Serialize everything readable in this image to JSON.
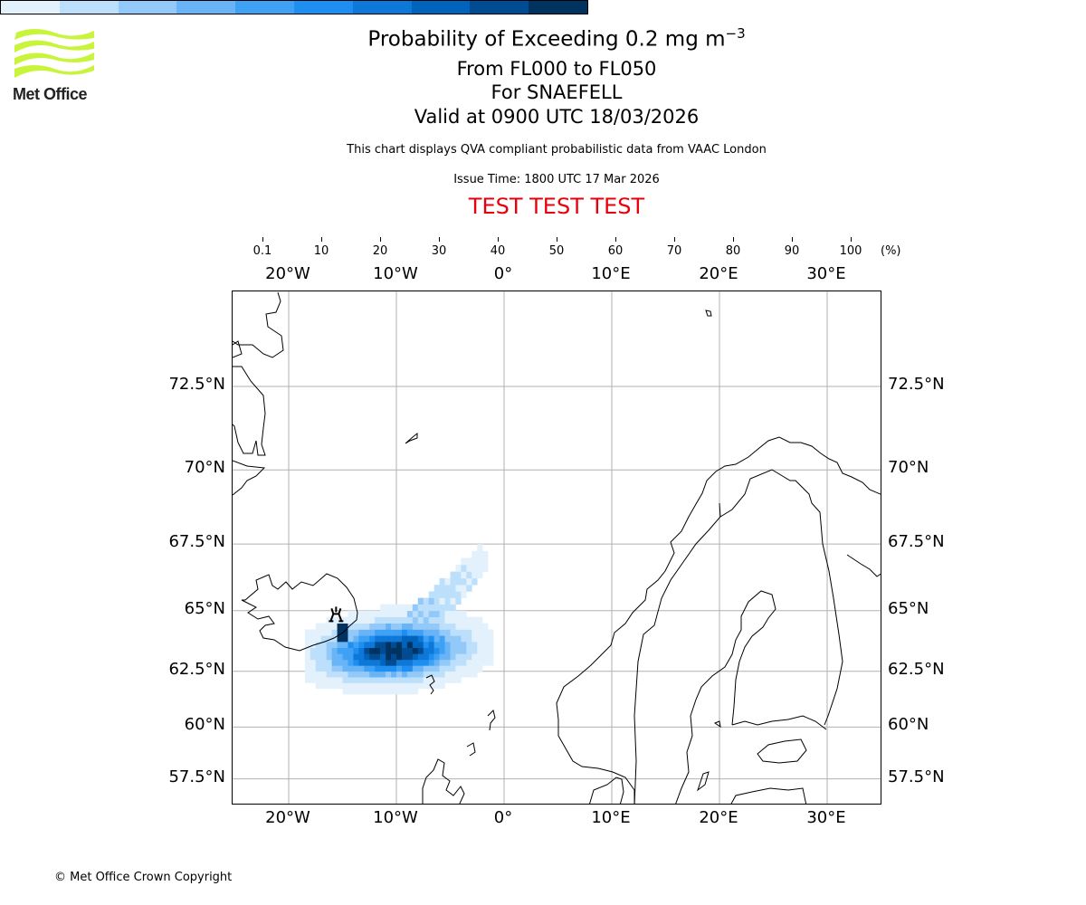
{
  "logo": {
    "text": "Met Office",
    "color": "#c8f53a"
  },
  "header": {
    "title": "Probability of Exceeding 0.2 mg m",
    "title_sup": "−3",
    "levels": "From FL000 to FL050",
    "volcano": "For SNAEFELL",
    "valid": "Valid at 0900 UTC 18/03/2026",
    "description": "This chart displays QVA compliant probabilistic data from VAAC London",
    "issue_time": "Issue Time: 1800 UTC 17 Mar 2026",
    "test_banner": "TEST TEST TEST"
  },
  "colorbar": {
    "labels": [
      "0.1",
      "10",
      "20",
      "30",
      "40",
      "50",
      "60",
      "70",
      "80",
      "90",
      "100"
    ],
    "unit": "(%)",
    "colors": [
      "#e3f1fd",
      "#bcdffb",
      "#93c9f9",
      "#68b4f6",
      "#3fa1f4",
      "#1e8ef0",
      "#0e78d9",
      "#0063bc",
      "#004b91",
      "#00335f"
    ]
  },
  "map": {
    "extent": {
      "lon": [
        -25.2,
        35.2
      ],
      "lat": [
        56.15,
        75.0
      ]
    },
    "lon_ticks": [
      {
        "v": -20,
        "label": "20°W"
      },
      {
        "v": -10,
        "label": "10°W"
      },
      {
        "v": 0,
        "label": "0°"
      },
      {
        "v": 10,
        "label": "10°E"
      },
      {
        "v": 20,
        "label": "20°E"
      },
      {
        "v": 30,
        "label": "30°E"
      }
    ],
    "lat_ticks": [
      {
        "v": 72.5,
        "label": "72.5°N"
      },
      {
        "v": 70,
        "label": "70°N"
      },
      {
        "v": 67.5,
        "label": "67.5°N"
      },
      {
        "v": 65,
        "label": "65°N"
      },
      {
        "v": 62.5,
        "label": "62.5°N"
      },
      {
        "v": 60,
        "label": "60°N"
      },
      {
        "v": 57.5,
        "label": "57.5°N"
      }
    ],
    "volcano": {
      "name": "SNAEFELL",
      "lon": -15.6,
      "lat": 64.8,
      "icon": "volcano-icon"
    },
    "plume_model": {
      "body": {
        "lon": -10.3,
        "lat": 63.35,
        "rlon": 6.6,
        "rlat": 1.2,
        "peak": 100
      },
      "tail": {
        "from": [
          -8.0,
          64.3
        ],
        "to": [
          -1.8,
          67.1
        ],
        "width": 0.9,
        "peak": 25
      },
      "source": {
        "lon": [
          -15.3,
          -14.3
        ],
        "lat": [
          63.8,
          64.6
        ],
        "value": 92
      }
    }
  },
  "footer": {
    "copyright": "© Met Office Crown Copyright"
  }
}
